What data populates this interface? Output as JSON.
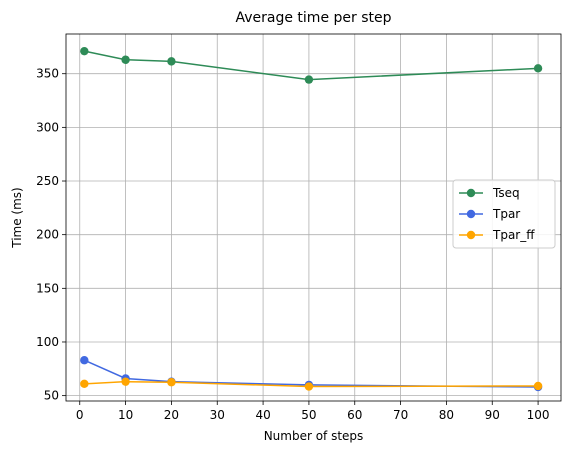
{
  "chart_data": {
    "type": "line",
    "title": "Average time per step",
    "xlabel": "Number of steps",
    "ylabel": "Time (ms)",
    "xlim": [
      -3,
      105
    ],
    "ylim": [
      45,
      387
    ],
    "xticks": [
      0,
      10,
      20,
      30,
      40,
      50,
      60,
      70,
      80,
      90,
      100
    ],
    "yticks": [
      50,
      100,
      150,
      200,
      250,
      300,
      350
    ],
    "grid": true,
    "legend_position": "center-right",
    "x": [
      1,
      10,
      20,
      50,
      100
    ],
    "series": [
      {
        "name": "Tseq",
        "color": "#2e8b57",
        "values": [
          371,
          363,
          361.5,
          344.5,
          355
        ]
      },
      {
        "name": "Tpar",
        "color": "#4169e1",
        "values": [
          83,
          66,
          63,
          60,
          58
        ]
      },
      {
        "name": "Tpar_ff",
        "color": "#ffa500",
        "values": [
          61,
          63,
          62.5,
          58.5,
          59
        ]
      }
    ]
  }
}
